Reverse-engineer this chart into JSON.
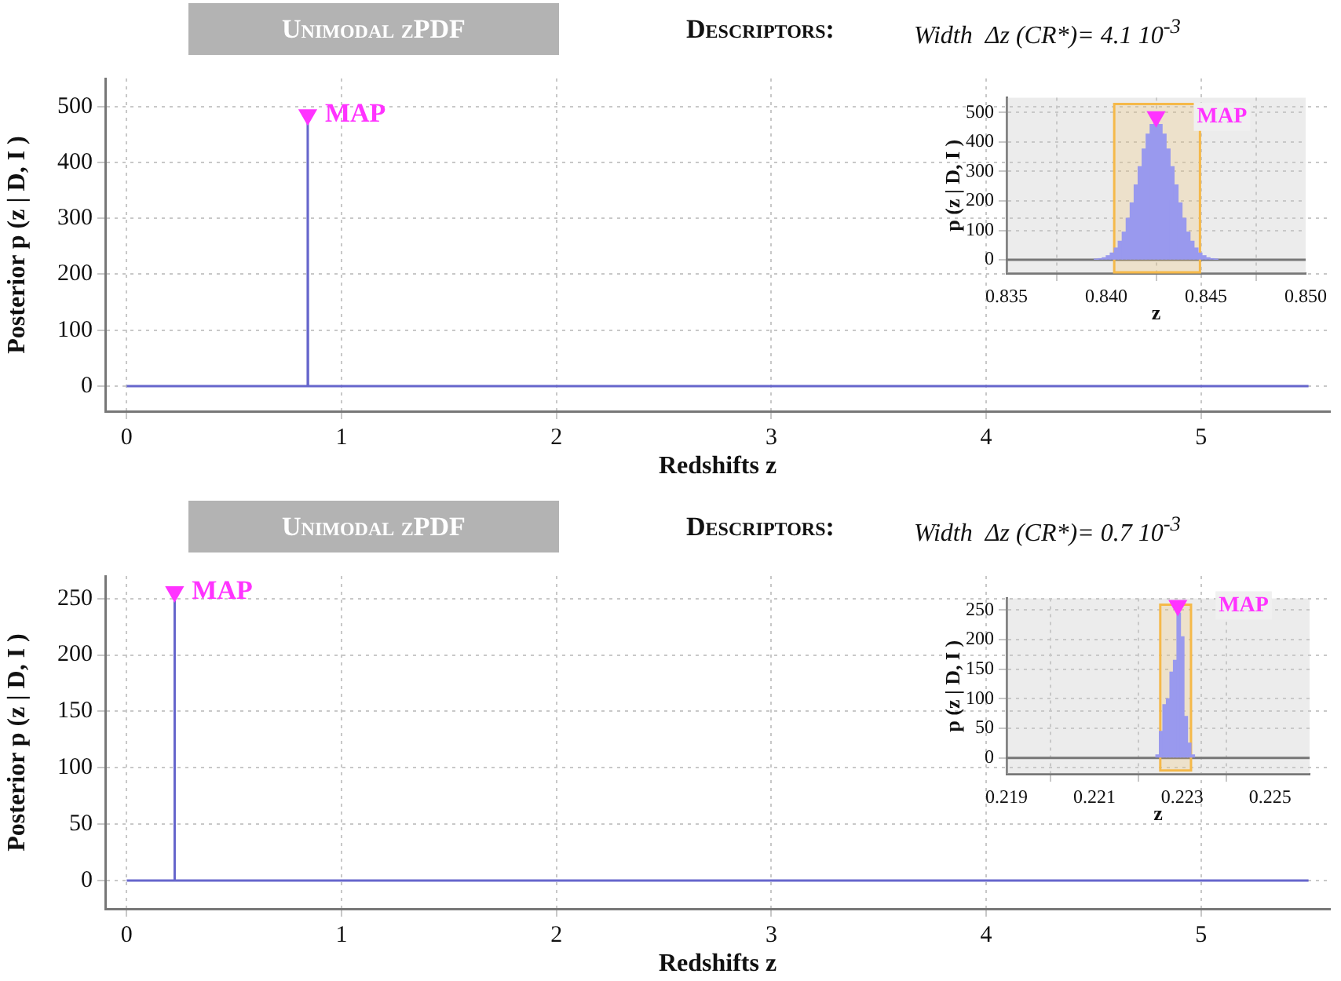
{
  "chart_data": [
    {
      "type": "line",
      "title": "Unimodal zPDF",
      "subtitle": "Descriptors:",
      "annotations": [
        "Width  Δz (CR*)= 4.1 10$^{-3}$"
      ],
      "xlabel": "Redshifts z",
      "ylabel": "Posterior p (z | D, I )",
      "xlim": [
        -0.1,
        5.6
      ],
      "xticks": [
        0,
        1,
        2,
        3,
        4,
        5
      ],
      "ylim": [
        -45,
        550
      ],
      "yticks": [
        0,
        100,
        200,
        300,
        400,
        500
      ],
      "grid": true,
      "series": [
        {
          "type": "line",
          "color": "#6666cc",
          "x": [
            0,
            0.841,
            0.8425,
            0.844,
            5.5
          ],
          "values": [
            0,
            0,
            470,
            0,
            0
          ]
        },
        {
          "type": "scatter",
          "name": "MAP",
          "color": "#ff33ff",
          "marker": "triangle",
          "x": [
            0.8425
          ],
          "values": [
            485
          ]
        }
      ]
    },
    {
      "type": "histogram",
      "xlabel": "z",
      "ylabel": "p (z | D, I )",
      "xlim": [
        0.835,
        0.85
      ],
      "xticks": [
        0.835,
        {
          "value": 0.84,
          "label": "0.840"
        },
        0.845,
        {
          "value": 0.85,
          "label": "0.850"
        }
      ],
      "ylim": [
        -45,
        550
      ],
      "yticks": [
        0,
        100,
        200,
        300,
        400,
        500
      ],
      "grid": true,
      "bins": [
        0.8394,
        0.8396,
        0.8398,
        0.84,
        0.8402,
        0.8404,
        0.8406,
        0.8408,
        0.841,
        0.8412,
        0.8414,
        0.8416,
        0.8418,
        0.842,
        0.8422,
        0.8424,
        0.8426,
        0.8428,
        0.843,
        0.8432,
        0.8434,
        0.8436,
        0.8438,
        0.844,
        0.8442,
        0.8444,
        0.8446,
        0.8448,
        0.845,
        0.8452,
        0.8454,
        0.8456
      ],
      "bands": [
        {
          "axis": "x",
          "from": 0.8404,
          "to": 0.8447,
          "color": "#f5b94a"
        }
      ],
      "ref_lines": [
        {
          "axis": "y",
          "value": 0,
          "color": "#777777"
        }
      ],
      "series": [
        {
          "type": "histogram",
          "color": "#9999ee",
          "values": [
            2,
            4,
            7,
            14,
            23,
            40,
            63,
            94,
            141,
            193,
            254,
            316,
            376,
            426,
            459,
            470,
            459,
            426,
            376,
            316,
            254,
            193,
            141,
            94,
            63,
            40,
            23,
            14,
            7,
            4,
            2
          ]
        },
        {
          "type": "scatter",
          "name": "MAP",
          "color": "#ff33ff",
          "marker": "triangle",
          "x": [
            0.8425
          ],
          "values": [
            485
          ]
        }
      ]
    },
    {
      "type": "line",
      "title": "Unimodal zPDF",
      "subtitle": "Descriptors:",
      "annotations": [
        "Width  Δz (CR*)= 0.7 10$^{-3}$"
      ],
      "xlabel": "Redshifts z",
      "ylabel": "Posterior p (z | D, I )",
      "xlim": [
        -0.1,
        5.6
      ],
      "xticks": [
        0,
        1,
        2,
        3,
        4,
        5
      ],
      "ylim": [
        -25,
        270
      ],
      "yticks": [
        0,
        50,
        100,
        150,
        200,
        250
      ],
      "grid": true,
      "series": [
        {
          "type": "line",
          "color": "#6666cc",
          "x": [
            0,
            0.2222,
            0.2229,
            0.2236,
            5.5
          ],
          "values": [
            0,
            0,
            248,
            0,
            0
          ]
        },
        {
          "type": "scatter",
          "name": "MAP",
          "color": "#ff33ff",
          "marker": "triangle",
          "x": [
            0.2229
          ],
          "values": [
            256
          ]
        }
      ]
    },
    {
      "type": "histogram",
      "xlabel": "z",
      "ylabel": "p (z | D, I )",
      "xlim": [
        0.219,
        0.2259
      ],
      "xticks": [
        0.219,
        0.221,
        0.223,
        0.225
      ],
      "ylim": [
        -27,
        270
      ],
      "yticks": [
        0,
        50,
        100,
        150,
        200,
        250
      ],
      "grid": true,
      "bins": [
        0.2224,
        0.22248,
        0.22256,
        0.22264,
        0.22272,
        0.2228,
        0.22288,
        0.22296,
        0.22304,
        0.22312,
        0.2232,
        0.22328
      ],
      "bands": [
        {
          "axis": "x",
          "from": 0.2225,
          "to": 0.2232,
          "color": "#f5b94a"
        }
      ],
      "ref_lines": [
        {
          "axis": "y",
          "value": 0,
          "color": "#777777"
        }
      ],
      "series": [
        {
          "type": "histogram",
          "color": "#9999ee",
          "values": [
            5,
            45,
            90,
            100,
            145,
            165,
            245,
            205,
            70,
            25,
            5
          ]
        },
        {
          "type": "scatter",
          "name": "MAP",
          "color": "#ff33ff",
          "marker": "triangle",
          "x": [
            0.2229
          ],
          "values": [
            258
          ]
        }
      ]
    }
  ]
}
